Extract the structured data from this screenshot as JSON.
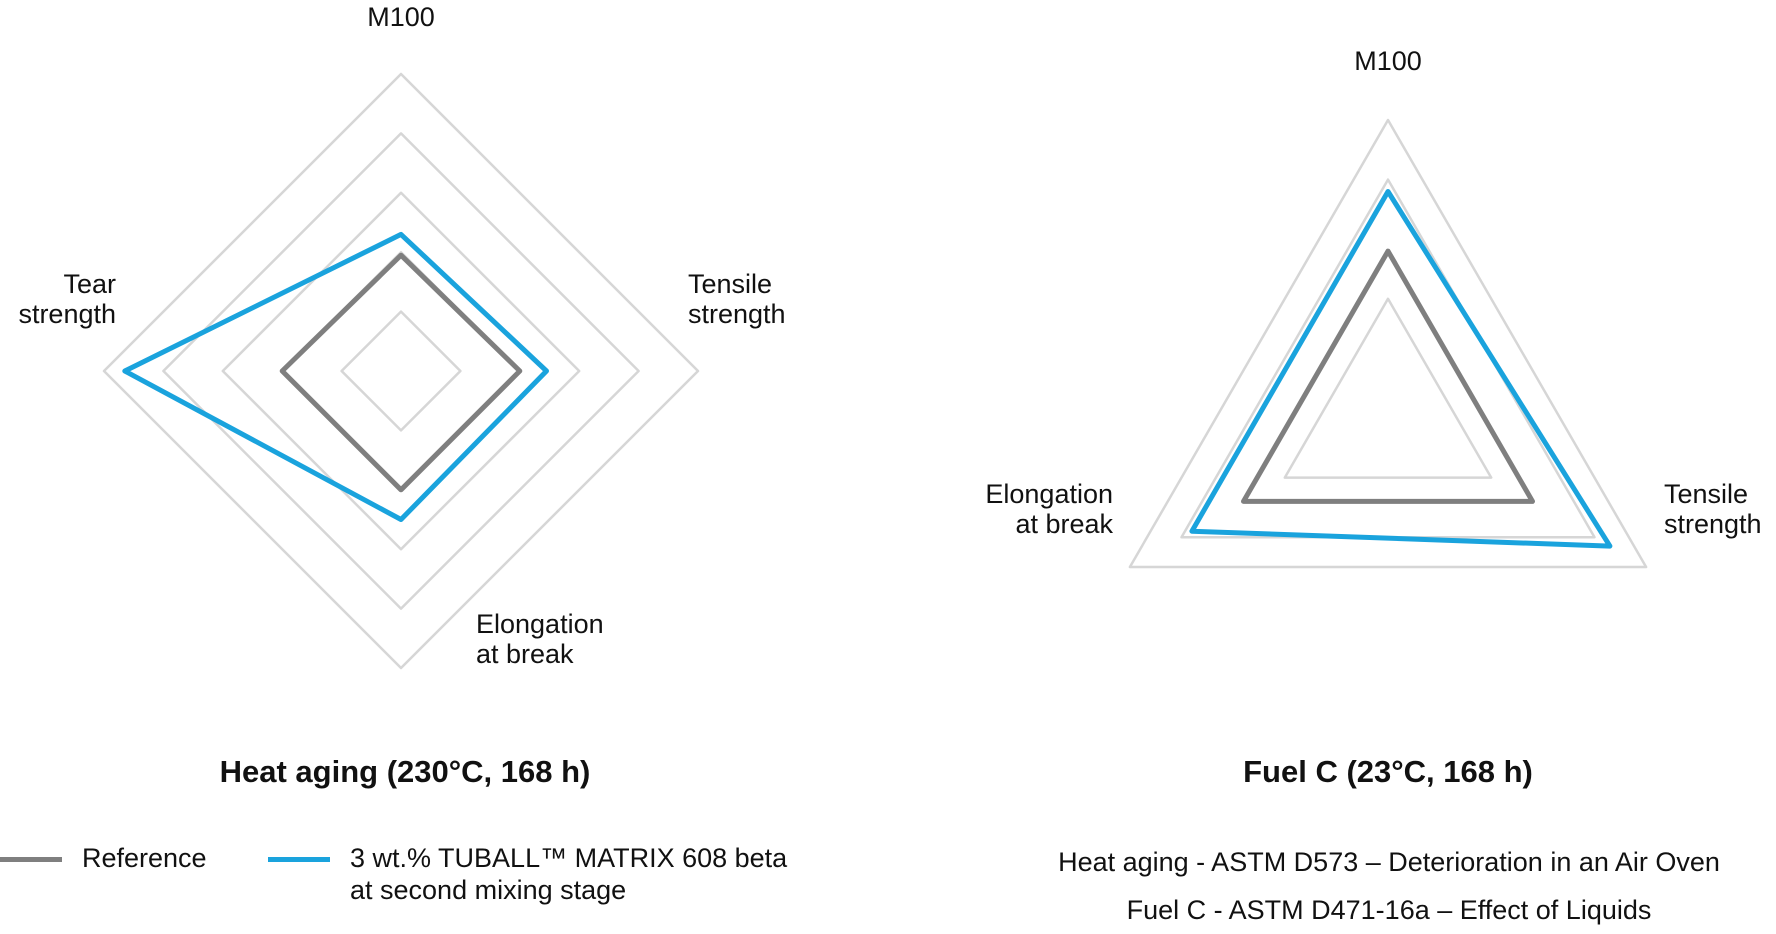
{
  "chart_data": [
    {
      "type": "radar",
      "title": "Heat aging (230°C, 168 h)",
      "axes": [
        {
          "label": [
            "M100"
          ]
        },
        {
          "label": [
            "Tensile",
            "strength"
          ]
        },
        {
          "label": [
            "Elongation",
            "at break"
          ]
        },
        {
          "label": [
            "Tear",
            "strength"
          ]
        }
      ],
      "grid_levels": [
        0.2,
        0.4,
        0.6,
        0.8,
        1.0
      ],
      "grid": true,
      "series": [
        {
          "key": "reference",
          "values": [
            0.39,
            0.4,
            0.4,
            0.4
          ]
        },
        {
          "key": "tuball",
          "values": [
            0.46,
            0.49,
            0.5,
            0.93
          ]
        }
      ]
    },
    {
      "type": "radar",
      "title": "Fuel C (23°C, 168 h)",
      "axes": [
        {
          "label": [
            "M100"
          ]
        },
        {
          "label": [
            "Tensile",
            "strength"
          ]
        },
        {
          "label": [
            "Elongation",
            "at break"
          ]
        }
      ],
      "grid_levels": [
        0.4,
        0.8,
        1.0
      ],
      "grid": true,
      "series": [
        {
          "key": "reference",
          "values": [
            0.56,
            0.56,
            0.56
          ]
        },
        {
          "key": "tuball",
          "values": [
            0.76,
            0.86,
            0.76
          ]
        }
      ]
    }
  ],
  "legend": [
    {
      "key": "reference",
      "label_lines": [
        "Reference"
      ],
      "color": "#7f7f7f"
    },
    {
      "key": "tuball",
      "label_lines": [
        "3 wt.% TUBALL™ MATRIX 608 beta",
        "at second mixing stage"
      ],
      "color": "#1aa3dd"
    }
  ],
  "notes": [
    "Heat aging - ASTM D573 – Deterioration in an Air Oven",
    "Fuel C - ASTM D471-16a – Effect of Liquids"
  ],
  "colors": {
    "grid": "#d6d6d6",
    "text": "#111111"
  }
}
